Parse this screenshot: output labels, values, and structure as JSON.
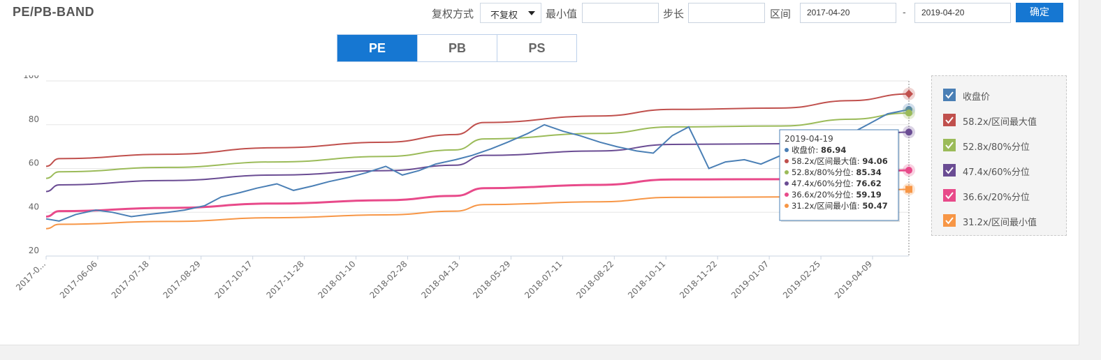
{
  "header": {
    "title": "PE/PB-BAND",
    "adjust_label": "复权方式",
    "adjust_value": "不复权",
    "min_label": "最小值",
    "min_value": "",
    "step_label": "步长",
    "step_value": "",
    "range_label": "区间",
    "range_start": "2017-04-20",
    "range_sep": "-",
    "range_end": "2019-04-20",
    "confirm_label": "确定"
  },
  "tabs": [
    {
      "label": "PE",
      "active": true
    },
    {
      "label": "PB",
      "active": false
    },
    {
      "label": "PS",
      "active": false
    }
  ],
  "chart_data": {
    "type": "line",
    "ylim": [
      20,
      100
    ],
    "yticks": [
      20,
      40,
      60,
      80,
      100
    ],
    "xticks": [
      "2017-0...",
      "2017-06-06",
      "2017-07-18",
      "2017-08-29",
      "2017-10-17",
      "2017-11-28",
      "2018-01-10",
      "2018-02-28",
      "2018-04-13",
      "2018-05-29",
      "2018-07-11",
      "2018-08-22",
      "2018-10-11",
      "2018-11-22",
      "2019-01-07",
      "2019-02-25",
      "2019-04-09"
    ],
    "x_range": [
      "2017-04-20",
      "2019-04-19"
    ],
    "series": [
      {
        "name": "收盘价",
        "color": "#4a7fb5",
        "dates": [
          "2017-04-20",
          "2017-05-01",
          "2017-05-15",
          "2017-06-01",
          "2017-06-15",
          "2017-07-01",
          "2017-07-15",
          "2017-08-01",
          "2017-08-15",
          "2017-09-01",
          "2017-09-15",
          "2017-10-01",
          "2017-10-15",
          "2017-11-01",
          "2017-11-15",
          "2017-12-01",
          "2017-12-15",
          "2018-01-01",
          "2018-01-15",
          "2018-02-01",
          "2018-02-15",
          "2018-03-01",
          "2018-03-15",
          "2018-04-01",
          "2018-04-15",
          "2018-05-01",
          "2018-05-15",
          "2018-06-01",
          "2018-06-15",
          "2018-07-01",
          "2018-07-15",
          "2018-08-01",
          "2018-08-15",
          "2018-09-01",
          "2018-09-15",
          "2018-10-01",
          "2018-10-15",
          "2018-10-25",
          "2018-11-01",
          "2018-11-15",
          "2018-12-01",
          "2018-12-15",
          "2019-01-01",
          "2019-01-15",
          "2019-02-01",
          "2019-02-15",
          "2019-03-01",
          "2019-03-15",
          "2019-04-01",
          "2019-04-19"
        ],
        "values": [
          37,
          36,
          39,
          41,
          40,
          38,
          39,
          40,
          41,
          43,
          47,
          49,
          51,
          53,
          50,
          52,
          54,
          56,
          58,
          61,
          57,
          59,
          62,
          64,
          66,
          69,
          72,
          76,
          80,
          77,
          75,
          72,
          70,
          68,
          67,
          75,
          79,
          68,
          60,
          63,
          64,
          62,
          66,
          70,
          72,
          73,
          76,
          80,
          85,
          86.94
        ]
      },
      {
        "name": "58.2x/区间最大值",
        "color": "#c0504d",
        "dates": [
          "2017-04-20",
          "2017-05-01",
          "2017-08-01",
          "2017-11-01",
          "2018-02-01",
          "2018-04-01",
          "2018-04-25",
          "2018-08-01",
          "2018-10-01",
          "2019-01-01",
          "2019-03-01",
          "2019-04-19"
        ],
        "values": [
          61,
          64.5,
          66.5,
          69.5,
          72,
          75.5,
          81,
          84,
          87,
          87.6,
          91,
          94.06
        ]
      },
      {
        "name": "52.8x/80%分位",
        "color": "#9bbb59",
        "dates": [
          "2017-04-20",
          "2017-05-01",
          "2017-08-01",
          "2017-11-01",
          "2018-02-01",
          "2018-04-01",
          "2018-04-25",
          "2018-08-01",
          "2018-10-01",
          "2019-01-01",
          "2019-03-01",
          "2019-04-19"
        ],
        "values": [
          55.5,
          58.5,
          60.5,
          63,
          65.5,
          68.5,
          73.5,
          76,
          79,
          79.4,
          82.5,
          85.34
        ]
      },
      {
        "name": "47.4x/60%分位",
        "color": "#6a4c93",
        "dates": [
          "2017-04-20",
          "2017-05-01",
          "2017-08-01",
          "2017-11-01",
          "2018-02-01",
          "2018-04-01",
          "2018-04-25",
          "2018-08-01",
          "2018-10-01",
          "2019-01-01",
          "2019-03-01",
          "2019-04-19"
        ],
        "values": [
          49.5,
          52.5,
          54.5,
          57,
          59,
          61.5,
          66,
          68,
          71,
          71.3,
          74,
          76.62
        ]
      },
      {
        "name": "36.6x/20%分位",
        "color": "#e84a8a",
        "dates": [
          "2017-04-20",
          "2017-05-01",
          "2017-08-01",
          "2017-11-01",
          "2018-02-01",
          "2018-04-01",
          "2018-04-25",
          "2018-08-01",
          "2018-10-01",
          "2019-01-01",
          "2019-03-01",
          "2019-04-19"
        ],
        "values": [
          38,
          40.5,
          42,
          44,
          45.5,
          47.5,
          51,
          52.5,
          55,
          55.1,
          57,
          59.19
        ]
      },
      {
        "name": "31.2x/区间最小值",
        "color": "#f79646",
        "dates": [
          "2017-04-20",
          "2017-05-01",
          "2017-08-01",
          "2017-11-01",
          "2018-02-01",
          "2018-04-01",
          "2018-04-25",
          "2018-08-01",
          "2018-10-01",
          "2019-01-01",
          "2019-03-01",
          "2019-04-19"
        ],
        "values": [
          32.5,
          34.5,
          35.8,
          37.5,
          38.8,
          40.5,
          43.5,
          44.8,
          46.8,
          47,
          48.7,
          50.47
        ]
      }
    ],
    "tooltip": {
      "date": "2019-04-19",
      "items": [
        {
          "name": "收盘价",
          "value": "86.94",
          "color": "#4a7fb5"
        },
        {
          "name": "58.2x/区间最大值",
          "value": "94.06",
          "color": "#c0504d"
        },
        {
          "name": "52.8x/80%分位",
          "value": "85.34",
          "color": "#9bbb59"
        },
        {
          "name": "47.4x/60%分位",
          "value": "76.62",
          "color": "#6a4c93"
        },
        {
          "name": "36.6x/20%分位",
          "value": "59.19",
          "color": "#e84a8a"
        },
        {
          "name": "31.2x/区间最小值",
          "value": "50.47",
          "color": "#f79646"
        }
      ]
    }
  },
  "legend": [
    {
      "label": "收盘价",
      "color": "#4a7fb5"
    },
    {
      "label": "58.2x/区间最大值",
      "color": "#c0504d"
    },
    {
      "label": "52.8x/80%分位",
      "color": "#9bbb59"
    },
    {
      "label": "47.4x/60%分位",
      "color": "#6a4c93"
    },
    {
      "label": "36.6x/20%分位",
      "color": "#e84a8a"
    },
    {
      "label": "31.2x/区间最小值",
      "color": "#f79646"
    }
  ]
}
